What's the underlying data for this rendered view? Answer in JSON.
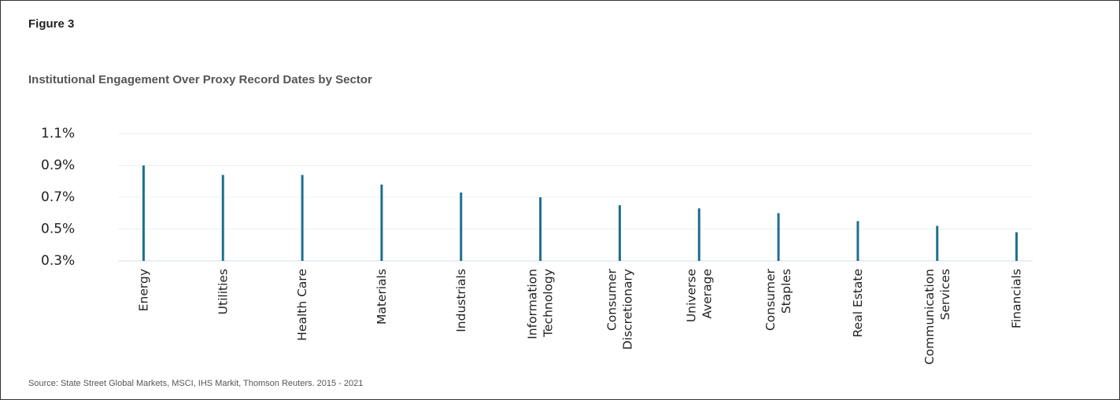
{
  "chart_data": {
    "type": "bar",
    "title": "Figure 3",
    "subtitle": "Institutional Engagement Over Proxy Record Dates by Sector",
    "source": "Source: State Street Global Markets, MSCI, IHS Markit, Thomson Reuters. 2015 - 2021",
    "categories": [
      "Energy",
      "Utilities",
      "Health Care",
      "Materials",
      "Industrials",
      "Information\nTechnology",
      "Consumer\nDiscretionary",
      "Universe\nAverage",
      "Consumer\nStaples",
      "Real Estate",
      "Communication\nServices",
      "Financials"
    ],
    "values": [
      0.9,
      0.84,
      0.84,
      0.78,
      0.73,
      0.7,
      0.65,
      0.63,
      0.6,
      0.55,
      0.52,
      0.48
    ],
    "color": "#1f6f8f",
    "ylim": [
      0.3,
      1.1
    ],
    "yticks": [
      {
        "value": 0.3,
        "label": "0.3%"
      },
      {
        "value": 0.5,
        "label": "0.5%"
      },
      {
        "value": 0.7,
        "label": "0.7%"
      },
      {
        "value": 0.9,
        "label": "0.9%"
      },
      {
        "value": 1.1,
        "label": "1.1%"
      }
    ],
    "grid": true
  }
}
